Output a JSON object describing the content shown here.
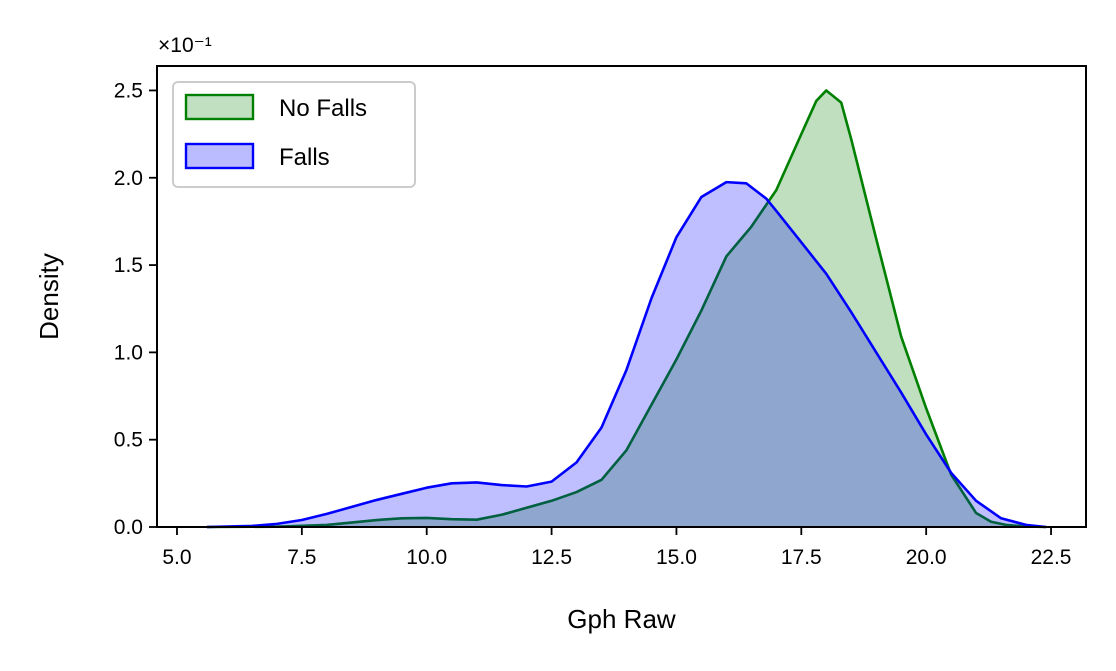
{
  "chart_data": {
    "type": "area",
    "title": "",
    "xlabel": "Gph Raw",
    "ylabel": "Density",
    "y_scale_label": "×10⁻¹",
    "xlim": [
      4.6,
      23.2
    ],
    "ylim": [
      0,
      0.264
    ],
    "x_ticks": [
      5.0,
      7.5,
      10.0,
      12.5,
      15.0,
      17.5,
      20.0,
      22.5
    ],
    "x_tick_labels": [
      "5.0",
      "7.5",
      "10.0",
      "12.5",
      "15.0",
      "17.5",
      "20.0",
      "22.5"
    ],
    "y_ticks": [
      0.0,
      0.05,
      0.1,
      0.15,
      0.2,
      0.25
    ],
    "y_tick_labels": [
      "0.0",
      "0.5",
      "1.0",
      "1.5",
      "2.0",
      "2.5"
    ],
    "grid": false,
    "legend_position": "top-left",
    "series": [
      {
        "name": "No Falls",
        "color": "#008000",
        "fill": "#c1e0c1",
        "x": [
          5.6,
          7.0,
          8.0,
          9.0,
          9.5,
          10.0,
          10.5,
          11.0,
          11.5,
          12.0,
          12.5,
          13.0,
          13.5,
          14.0,
          14.5,
          15.0,
          15.5,
          16.0,
          16.5,
          17.0,
          17.5,
          17.8,
          18.0,
          18.3,
          18.5,
          19.0,
          19.5,
          20.0,
          20.5,
          21.0,
          21.3,
          21.6,
          22.0,
          22.4
        ],
        "values": [
          0.0,
          0.0002,
          0.0012,
          0.004,
          0.005,
          0.0052,
          0.0045,
          0.0042,
          0.007,
          0.011,
          0.015,
          0.02,
          0.027,
          0.044,
          0.07,
          0.096,
          0.124,
          0.155,
          0.172,
          0.193,
          0.225,
          0.244,
          0.25,
          0.243,
          0.222,
          0.165,
          0.109,
          0.068,
          0.03,
          0.008,
          0.003,
          0.0012,
          0.0003,
          0.0
        ]
      },
      {
        "name": "Falls",
        "color": "#0000ff",
        "fill": "#bbbbff",
        "x": [
          5.6,
          6.5,
          7.0,
          7.5,
          8.0,
          8.5,
          9.0,
          9.5,
          10.0,
          10.5,
          11.0,
          11.5,
          12.0,
          12.5,
          13.0,
          13.5,
          14.0,
          14.5,
          15.0,
          15.5,
          16.0,
          16.4,
          16.8,
          17.0,
          17.5,
          18.0,
          18.5,
          19.0,
          19.5,
          20.0,
          20.5,
          21.0,
          21.5,
          22.0,
          22.4
        ],
        "values": [
          0.0,
          0.0006,
          0.0018,
          0.004,
          0.0075,
          0.0115,
          0.0155,
          0.019,
          0.0225,
          0.025,
          0.0255,
          0.024,
          0.0232,
          0.026,
          0.037,
          0.057,
          0.09,
          0.131,
          0.166,
          0.189,
          0.1975,
          0.1968,
          0.188,
          0.181,
          0.163,
          0.145,
          0.123,
          0.1,
          0.077,
          0.053,
          0.031,
          0.015,
          0.005,
          0.0012,
          0.0
        ]
      }
    ]
  }
}
